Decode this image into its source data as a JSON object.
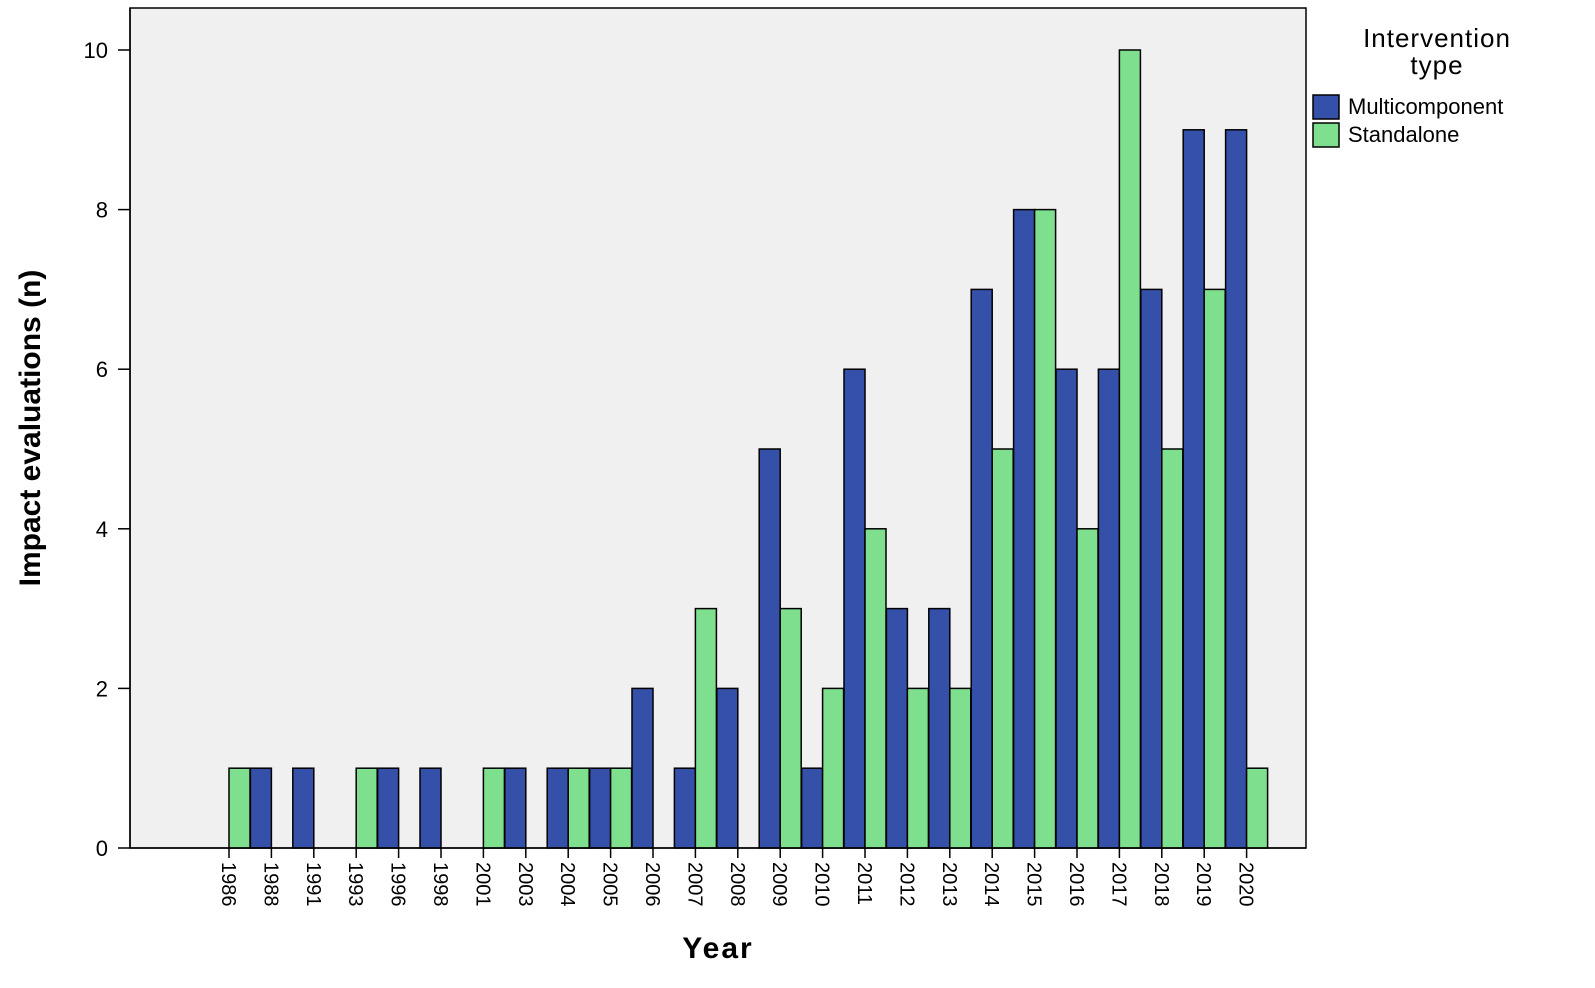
{
  "chart_data": {
    "type": "bar",
    "xlabel": "Year",
    "ylabel": "Impact evaluations (n)",
    "ylim": [
      0,
      10.5
    ],
    "yticks": [
      0,
      2,
      4,
      6,
      8,
      10
    ],
    "grid": false,
    "legend": {
      "title": "Intervention type",
      "placement": "right"
    },
    "categories": [
      "1986",
      "1988",
      "1991",
      "1993",
      "1996",
      "1998",
      "2001",
      "2003",
      "2004",
      "2005",
      "2006",
      "2007",
      "2008",
      "2009",
      "2010",
      "2011",
      "2012",
      "2013",
      "2014",
      "2015",
      "2016",
      "2017",
      "2018",
      "2019",
      "2020"
    ],
    "series": [
      {
        "name": "Multicomponent",
        "color": "#3550a8",
        "values": [
          0,
          1,
          1,
          0,
          1,
          1,
          0,
          1,
          1,
          1,
          2,
          1,
          2,
          5,
          1,
          6,
          3,
          3,
          7,
          8,
          6,
          6,
          7,
          9,
          9
        ]
      },
      {
        "name": "Standalone",
        "color": "#7ee08e",
        "values": [
          1,
          0,
          0,
          1,
          0,
          0,
          1,
          0,
          1,
          1,
          0,
          3,
          0,
          3,
          2,
          4,
          2,
          2,
          5,
          8,
          4,
          10,
          5,
          7,
          1
        ]
      }
    ]
  },
  "colors": {
    "plot_background": "#f0f0f0",
    "bar_outline": "#000000"
  }
}
